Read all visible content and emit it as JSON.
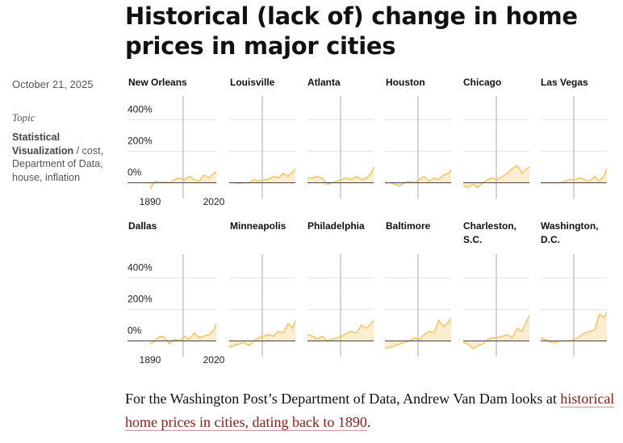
{
  "header": {
    "title": "Historical (lack of) change in home prices in major cities"
  },
  "sidebar": {
    "date": "October 21, 2025",
    "topic_label": "Topic",
    "topic": "Statistical Visualization",
    "separator": "/",
    "tags": "cost, Department of Data, house, inflation"
  },
  "body": {
    "text": "For the Washington Post’s Department of Data, Andrew Van Dam looks at ",
    "link": "historical home prices in cities, dating back to 1890",
    "end": "."
  },
  "chart_data": [
    {
      "type": "area",
      "title": "New Orleans",
      "x": [
        1890,
        1900,
        1910,
        1920,
        1930,
        1940,
        1950,
        1960,
        1970,
        1980,
        1990,
        2000,
        2010,
        2020,
        2025
      ],
      "values": [
        -40,
        10,
        0,
        5,
        0,
        20,
        30,
        20,
        40,
        20,
        10,
        50,
        30,
        60,
        70
      ],
      "xlim": [
        1890,
        2025
      ],
      "ylim": [
        -100,
        550
      ],
      "xticks": [
        1890,
        2020
      ],
      "yticks": [
        {
          "value": 0,
          "label": "0%"
        },
        {
          "value": 200,
          "label": "200%"
        },
        {
          "value": 400,
          "label": "400%"
        }
      ],
      "color": "#f3c464"
    },
    {
      "type": "area",
      "title": "Louisville",
      "x": [
        1890,
        1900,
        1910,
        1920,
        1930,
        1940,
        1950,
        1960,
        1970,
        1980,
        1990,
        2000,
        2010,
        2020,
        2025
      ],
      "values": [
        0,
        0,
        -5,
        0,
        0,
        20,
        10,
        20,
        20,
        40,
        30,
        60,
        40,
        70,
        90
      ],
      "xlim": [
        1890,
        2025
      ],
      "ylim": [
        -100,
        550
      ],
      "yticks": [
        0,
        200,
        400
      ],
      "color": "#f3c464"
    },
    {
      "type": "area",
      "title": "Atlanta",
      "x": [
        1890,
        1900,
        1910,
        1920,
        1930,
        1940,
        1950,
        1960,
        1970,
        1980,
        1990,
        2000,
        2010,
        2020,
        2025
      ],
      "values": [
        30,
        30,
        40,
        30,
        -10,
        0,
        10,
        20,
        30,
        20,
        40,
        20,
        30,
        60,
        100
      ],
      "xlim": [
        1890,
        2025
      ],
      "ylim": [
        -100,
        550
      ],
      "yticks": [
        0,
        200,
        400
      ],
      "color": "#f3c464"
    },
    {
      "type": "area",
      "title": "Houston",
      "x": [
        1890,
        1900,
        1910,
        1920,
        1930,
        1940,
        1950,
        1960,
        1970,
        1980,
        1990,
        2000,
        2010,
        2020,
        2025
      ],
      "values": [
        0,
        0,
        -10,
        -20,
        0,
        10,
        0,
        20,
        40,
        10,
        30,
        20,
        50,
        60,
        80
      ],
      "xlim": [
        1890,
        2025
      ],
      "ylim": [
        -100,
        550
      ],
      "yticks": [
        0,
        200,
        400
      ],
      "color": "#f3c464"
    },
    {
      "type": "area",
      "title": "Chicago",
      "x": [
        1890,
        1900,
        1910,
        1920,
        1930,
        1940,
        1950,
        1960,
        1970,
        1980,
        1990,
        2000,
        2010,
        2020,
        2025
      ],
      "values": [
        -20,
        -30,
        -10,
        -30,
        0,
        20,
        30,
        20,
        40,
        60,
        90,
        110,
        60,
        90,
        100
      ],
      "xlim": [
        1890,
        2025
      ],
      "ylim": [
        -100,
        550
      ],
      "yticks": [
        0,
        200,
        400
      ],
      "color": "#f3c464"
    },
    {
      "type": "area",
      "title": "Las Vegas",
      "x": [
        1890,
        1900,
        1910,
        1920,
        1930,
        1940,
        1950,
        1960,
        1970,
        1980,
        1990,
        2000,
        2010,
        2020,
        2025
      ],
      "values": [
        0,
        0,
        0,
        0,
        0,
        10,
        20,
        20,
        30,
        20,
        10,
        40,
        10,
        50,
        90
      ],
      "xlim": [
        1890,
        2025
      ],
      "ylim": [
        -100,
        550
      ],
      "yticks": [
        0,
        200,
        400
      ],
      "color": "#f3c464"
    },
    {
      "type": "area",
      "title": "Dallas",
      "x": [
        1890,
        1900,
        1910,
        1920,
        1930,
        1940,
        1950,
        1960,
        1970,
        1980,
        1990,
        2000,
        2010,
        2020,
        2025
      ],
      "values": [
        -20,
        0,
        30,
        20,
        -20,
        10,
        0,
        30,
        10,
        50,
        20,
        30,
        40,
        70,
        110
      ],
      "xlim": [
        1890,
        2025
      ],
      "ylim": [
        -100,
        550
      ],
      "xticks": [
        1890,
        2020
      ],
      "yticks": [
        {
          "value": 0,
          "label": "0%"
        },
        {
          "value": 200,
          "label": "200%"
        },
        {
          "value": 400,
          "label": "400%"
        }
      ],
      "color": "#f3c464"
    },
    {
      "type": "area",
      "title": "Minneapolis",
      "x": [
        1890,
        1900,
        1910,
        1920,
        1930,
        1940,
        1950,
        1960,
        1970,
        1980,
        1990,
        2000,
        2010,
        2020,
        2025
      ],
      "values": [
        -40,
        -30,
        -20,
        -10,
        -30,
        0,
        20,
        30,
        40,
        30,
        60,
        50,
        110,
        80,
        130
      ],
      "xlim": [
        1890,
        2025
      ],
      "ylim": [
        -100,
        550
      ],
      "yticks": [
        0,
        200,
        400
      ],
      "color": "#f3c464"
    },
    {
      "type": "area",
      "title": "Philadelphia",
      "x": [
        1890,
        1900,
        1910,
        1920,
        1930,
        1940,
        1950,
        1960,
        1970,
        1980,
        1990,
        2000,
        2010,
        2020,
        2025
      ],
      "values": [
        40,
        30,
        10,
        30,
        0,
        10,
        20,
        30,
        50,
        60,
        50,
        100,
        80,
        110,
        130
      ],
      "xlim": [
        1890,
        2025
      ],
      "ylim": [
        -100,
        550
      ],
      "yticks": [
        0,
        200,
        400
      ],
      "color": "#f3c464"
    },
    {
      "type": "area",
      "title": "Baltimore",
      "x": [
        1890,
        1900,
        1910,
        1920,
        1930,
        1940,
        1950,
        1960,
        1970,
        1980,
        1990,
        2000,
        2010,
        2020,
        2025
      ],
      "values": [
        -50,
        -40,
        -30,
        -20,
        -10,
        0,
        20,
        10,
        40,
        60,
        50,
        130,
        90,
        120,
        140
      ],
      "xlim": [
        1890,
        2025
      ],
      "ylim": [
        -100,
        550
      ],
      "yticks": [
        0,
        200,
        400
      ],
      "color": "#f3c464"
    },
    {
      "type": "area",
      "title": "Charleston, S.C.",
      "x": [
        1890,
        1900,
        1910,
        1920,
        1930,
        1940,
        1950,
        1960,
        1970,
        1980,
        1990,
        2000,
        2010,
        2020,
        2025
      ],
      "values": [
        -10,
        -20,
        -50,
        -30,
        -20,
        10,
        20,
        20,
        30,
        40,
        20,
        80,
        60,
        130,
        160
      ],
      "xlim": [
        1890,
        2025
      ],
      "ylim": [
        -100,
        550
      ],
      "yticks": [
        0,
        200,
        400
      ],
      "color": "#f3c464"
    },
    {
      "type": "area",
      "title": "Washington, D.C.",
      "x": [
        1890,
        1900,
        1910,
        1920,
        1930,
        1940,
        1950,
        1960,
        1970,
        1980,
        1990,
        2000,
        2010,
        2020,
        2025
      ],
      "values": [
        20,
        10,
        -10,
        -10,
        0,
        0,
        0,
        10,
        30,
        50,
        60,
        70,
        170,
        150,
        180
      ],
      "xlim": [
        1890,
        2025
      ],
      "ylim": [
        -100,
        550
      ],
      "yticks": [
        0,
        200,
        400
      ],
      "color": "#f3c464"
    }
  ]
}
